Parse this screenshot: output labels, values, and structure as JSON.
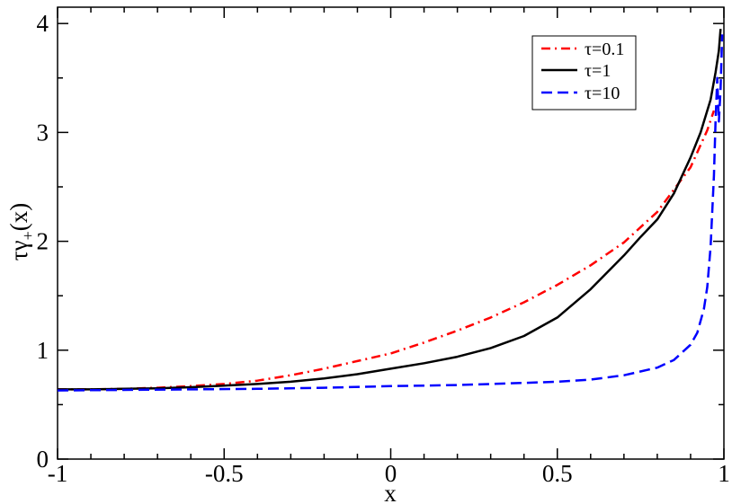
{
  "chart_data": {
    "type": "line",
    "xlabel": "x",
    "ylabel_main": "τγ",
    "ylabel_sub": "+",
    "ylabel_tail": "(x)",
    "xlim": [
      -1,
      1
    ],
    "ylim": [
      0,
      4.15
    ],
    "x_ticks": [
      -1,
      -0.5,
      0,
      0.5,
      1
    ],
    "x_tick_labels": [
      "-1",
      "-0.5",
      "0",
      "0.5",
      "1"
    ],
    "y_ticks": [
      0,
      1,
      2,
      3,
      4
    ],
    "y_tick_labels": [
      "0",
      "1",
      "2",
      "3",
      "4"
    ],
    "grid": false,
    "legend_position": "top-right",
    "series": [
      {
        "name": "τ=0.1",
        "color": "#ff0000",
        "style": "dash-dot",
        "x": [
          -1,
          -0.9,
          -0.8,
          -0.7,
          -0.6,
          -0.5,
          -0.4,
          -0.3,
          -0.2,
          -0.1,
          0,
          0.1,
          0.2,
          0.3,
          0.4,
          0.5,
          0.6,
          0.7,
          0.8,
          0.9,
          0.95,
          0.97
        ],
        "y": [
          0.64,
          0.64,
          0.645,
          0.655,
          0.67,
          0.69,
          0.72,
          0.77,
          0.83,
          0.9,
          0.97,
          1.07,
          1.18,
          1.3,
          1.44,
          1.6,
          1.78,
          1.99,
          2.27,
          2.68,
          3.02,
          3.2
        ]
      },
      {
        "name": "τ=1",
        "color": "#000000",
        "style": "solid",
        "x": [
          -1,
          -0.9,
          -0.8,
          -0.7,
          -0.6,
          -0.5,
          -0.4,
          -0.3,
          -0.2,
          -0.1,
          0,
          0.1,
          0.2,
          0.3,
          0.4,
          0.5,
          0.6,
          0.7,
          0.75,
          0.8,
          0.85,
          0.9,
          0.93,
          0.96,
          0.975,
          0.985,
          0.99
        ],
        "y": [
          0.64,
          0.64,
          0.645,
          0.65,
          0.66,
          0.675,
          0.69,
          0.71,
          0.74,
          0.78,
          0.83,
          0.88,
          0.94,
          1.02,
          1.13,
          1.3,
          1.56,
          1.87,
          2.04,
          2.2,
          2.44,
          2.77,
          3.0,
          3.3,
          3.55,
          3.75,
          3.95
        ]
      },
      {
        "name": "τ=10",
        "color": "#0000ff",
        "style": "dashed",
        "x": [
          -1,
          -0.8,
          -0.6,
          -0.4,
          -0.2,
          0,
          0.2,
          0.4,
          0.5,
          0.6,
          0.7,
          0.8,
          0.85,
          0.9,
          0.92,
          0.94,
          0.95,
          0.96,
          0.97,
          0.975,
          0.98,
          0.985,
          0.99,
          0.995
        ],
        "y": [
          0.63,
          0.635,
          0.64,
          0.645,
          0.655,
          0.67,
          0.68,
          0.7,
          0.71,
          0.73,
          0.77,
          0.84,
          0.91,
          1.05,
          1.16,
          1.38,
          1.58,
          1.95,
          2.6,
          3.1,
          3.5,
          3.1,
          3.4,
          3.9
        ]
      }
    ]
  }
}
